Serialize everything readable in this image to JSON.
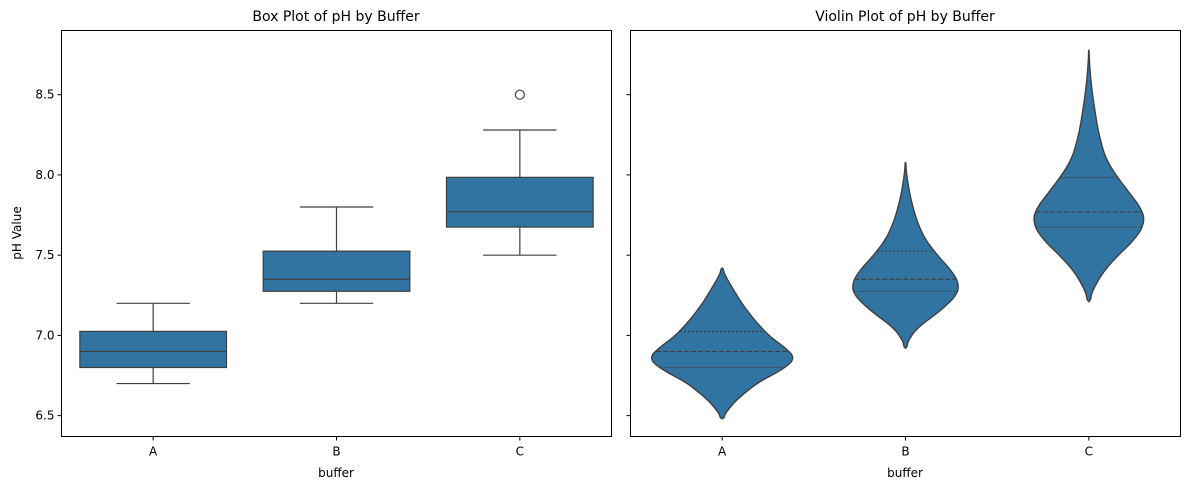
{
  "chart_data": [
    {
      "type": "box",
      "title": "Box Plot of pH by Buffer",
      "xlabel": "buffer",
      "ylabel": "pH Value",
      "categories": [
        "A",
        "B",
        "C"
      ],
      "ylim": [
        6.37,
        8.9
      ],
      "yticks": [
        "6.5",
        "7.0",
        "7.5",
        "8.0",
        "8.5"
      ],
      "color": "#3274a1",
      "boxes": [
        {
          "category": "A",
          "q1": 6.8,
          "median": 6.9,
          "q3": 7.025,
          "whisker_low": 6.7,
          "whisker_high": 7.2,
          "outliers": []
        },
        {
          "category": "B",
          "q1": 7.275,
          "median": 7.35,
          "q3": 7.525,
          "whisker_low": 7.2,
          "whisker_high": 7.8,
          "outliers": []
        },
        {
          "category": "C",
          "q1": 7.675,
          "median": 7.77,
          "q3": 7.985,
          "whisker_low": 7.5,
          "whisker_high": 8.28,
          "outliers": [
            8.5
          ]
        }
      ]
    },
    {
      "type": "violin",
      "title": "Violin Plot of pH by Buffer",
      "xlabel": "buffer",
      "ylabel": "",
      "categories": [
        "A",
        "B",
        "C"
      ],
      "ylim": [
        6.37,
        8.9
      ],
      "yticks": [
        "6.5",
        "7.0",
        "7.5",
        "8.0",
        "8.5"
      ],
      "color": "#3274a1",
      "violins": [
        {
          "category": "A",
          "min": 6.48,
          "max": 7.42,
          "q1": 6.8,
          "median": 6.9,
          "q3": 7.025,
          "profile": [
            [
              6.48,
              0.0
            ],
            [
              6.53,
              0.04
            ],
            [
              6.6,
              0.12
            ],
            [
              6.7,
              0.28
            ],
            [
              6.8,
              0.52
            ],
            [
              6.86,
              0.6
            ],
            [
              6.92,
              0.52
            ],
            [
              7.0,
              0.38
            ],
            [
              7.1,
              0.26
            ],
            [
              7.2,
              0.16
            ],
            [
              7.3,
              0.08
            ],
            [
              7.38,
              0.02
            ],
            [
              7.42,
              0.0
            ]
          ]
        },
        {
          "category": "B",
          "min": 6.92,
          "max": 8.08,
          "q1": 7.275,
          "median": 7.35,
          "q3": 7.525,
          "profile": [
            [
              6.92,
              0.0
            ],
            [
              6.98,
              0.03
            ],
            [
              7.05,
              0.1
            ],
            [
              7.15,
              0.28
            ],
            [
              7.25,
              0.42
            ],
            [
              7.32,
              0.44
            ],
            [
              7.4,
              0.38
            ],
            [
              7.5,
              0.26
            ],
            [
              7.6,
              0.16
            ],
            [
              7.7,
              0.1
            ],
            [
              7.8,
              0.06
            ],
            [
              7.9,
              0.03
            ],
            [
              8.0,
              0.01
            ],
            [
              8.08,
              0.0
            ]
          ]
        },
        {
          "category": "C",
          "min": 7.21,
          "max": 8.78,
          "q1": 7.675,
          "median": 7.77,
          "q3": 7.985,
          "profile": [
            [
              7.21,
              0.0
            ],
            [
              7.28,
              0.03
            ],
            [
              7.4,
              0.12
            ],
            [
              7.5,
              0.24
            ],
            [
              7.6,
              0.38
            ],
            [
              7.7,
              0.46
            ],
            [
              7.78,
              0.44
            ],
            [
              7.9,
              0.32
            ],
            [
              8.0,
              0.22
            ],
            [
              8.1,
              0.14
            ],
            [
              8.2,
              0.1
            ],
            [
              8.3,
              0.07
            ],
            [
              8.4,
              0.05
            ],
            [
              8.5,
              0.03
            ],
            [
              8.6,
              0.015
            ],
            [
              8.7,
              0.005
            ],
            [
              8.78,
              0.0
            ]
          ]
        }
      ]
    }
  ]
}
